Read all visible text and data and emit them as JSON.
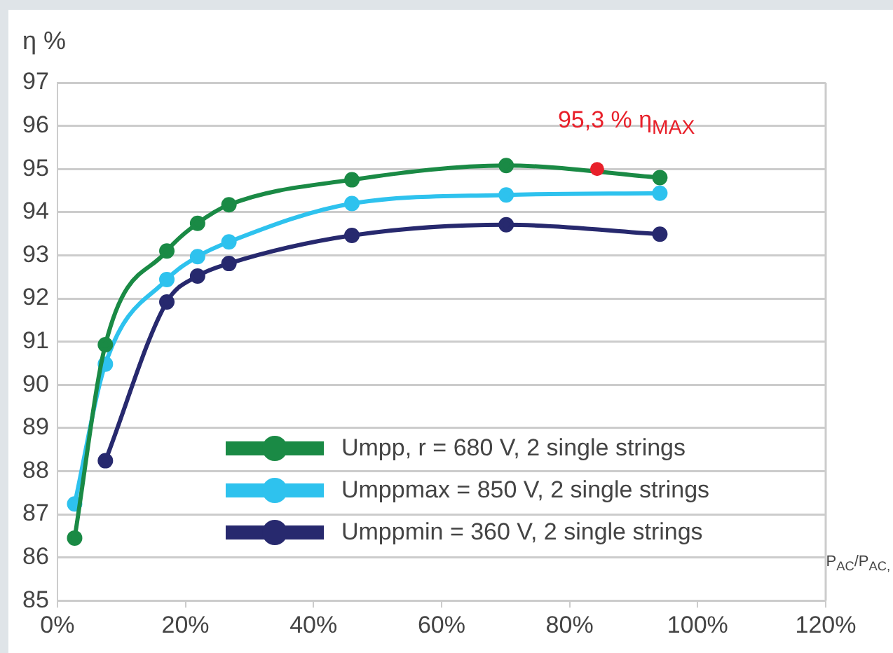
{
  "chart_data": {
    "type": "line",
    "ylabel": "η %",
    "xlabel": "P$_{AC}$/P$_{AC,}$",
    "xlim": [
      0,
      120
    ],
    "xticks": [
      {
        "value": 0,
        "label": "0%"
      },
      {
        "value": 20,
        "label": "20%"
      },
      {
        "value": 40,
        "label": "40%"
      },
      {
        "value": 60,
        "label": "60%"
      },
      {
        "value": 80,
        "label": "80%"
      },
      {
        "value": 100,
        "label": "100%"
      },
      {
        "value": 120,
        "label": "120%"
      }
    ],
    "ylim": [
      85,
      97
    ],
    "yticks": [
      85,
      86,
      87,
      88,
      89,
      90,
      91,
      92,
      93,
      94,
      95,
      96,
      97
    ],
    "grid": "y",
    "legend": "bottom",
    "marker": "circle",
    "line_style": "solid",
    "series": [
      {
        "name": "Umpp, r = 680 V, 2 single strings",
        "color": "#1a8a45",
        "x": [
          2.7,
          7.5,
          17.1,
          21.9,
          26.8,
          46.0,
          70.1,
          94.1
        ],
        "values": [
          86.45,
          90.93,
          93.1,
          93.74,
          94.17,
          94.75,
          95.08,
          94.8
        ]
      },
      {
        "name": "Umppmax = 850 V, 2 single strings",
        "color": "#2ec2ee",
        "x": [
          2.7,
          7.5,
          17.1,
          21.9,
          26.8,
          46.0,
          70.1,
          94.1
        ],
        "values": [
          87.24,
          90.48,
          92.44,
          92.97,
          93.31,
          94.2,
          94.4,
          94.44
        ]
      },
      {
        "name": "Umppmin = 360 V, 2 single strings",
        "color": "#27296e",
        "x": [
          7.5,
          17.1,
          21.9,
          26.8,
          46.0,
          70.1,
          94.1
        ],
        "values": [
          88.24,
          91.92,
          92.52,
          92.81,
          93.46,
          93.71,
          93.49
        ]
      }
    ],
    "annotations": [
      {
        "text": "95,3 % η$_{MAX}$",
        "x": 84.3,
        "y": 95.0
      }
    ]
  }
}
